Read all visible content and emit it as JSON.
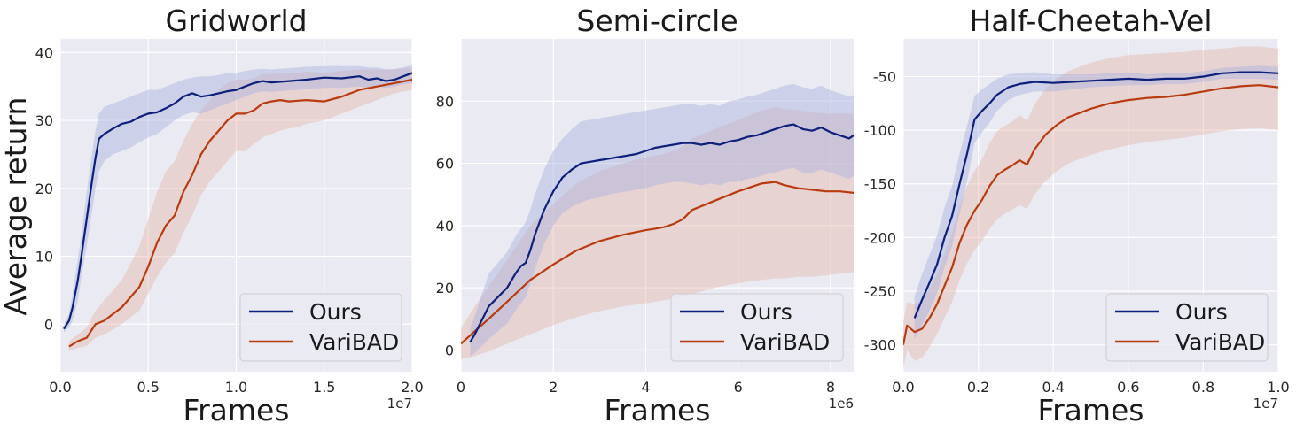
{
  "figure": {
    "ylabel": "Average return"
  },
  "chart_data": [
    {
      "type": "line",
      "title": "Gridworld",
      "xlabel": "Frames",
      "x_offset_label": "1e7",
      "xlim": [
        0.0,
        2.0
      ],
      "ylim": [
        -7,
        42
      ],
      "xticks": [
        0.0,
        0.5,
        1.0,
        1.5,
        2.0
      ],
      "xtick_labels": [
        "0.0",
        "0.5",
        "1.0",
        "1.5",
        "2.0"
      ],
      "yticks": [
        0,
        10,
        20,
        30,
        40
      ],
      "ytick_labels": [
        "0",
        "10",
        "20",
        "30",
        "40"
      ],
      "grid": true,
      "legend_position": "lower-right",
      "series": [
        {
          "name": "Ours",
          "color": "#0c1f7a",
          "band_color": "#a8b2de",
          "x": [
            0.02,
            0.05,
            0.07,
            0.1,
            0.12,
            0.15,
            0.18,
            0.2,
            0.22,
            0.25,
            0.3,
            0.35,
            0.4,
            0.45,
            0.5,
            0.55,
            0.6,
            0.65,
            0.7,
            0.75,
            0.8,
            0.85,
            0.9,
            0.95,
            1.0,
            1.05,
            1.1,
            1.15,
            1.2,
            1.3,
            1.4,
            1.5,
            1.6,
            1.7,
            1.75,
            1.8,
            1.85,
            1.9,
            1.95,
            2.0
          ],
          "y": [
            -0.7,
            0.5,
            2.5,
            6.5,
            10.0,
            15.5,
            21.0,
            24.5,
            27.3,
            28.0,
            28.8,
            29.5,
            29.8,
            30.5,
            31.0,
            31.2,
            31.8,
            32.5,
            33.5,
            34.0,
            33.5,
            33.7,
            34.0,
            34.3,
            34.5,
            35.0,
            35.5,
            35.8,
            35.6,
            35.8,
            36.0,
            36.3,
            36.2,
            36.5,
            36.0,
            36.2,
            35.8,
            36.0,
            36.5,
            37.0
          ],
          "lower": [
            -1.2,
            -0.5,
            0.5,
            3.5,
            7.0,
            11.5,
            16.5,
            20.0,
            22.5,
            24.0,
            25.0,
            25.5,
            26.0,
            26.8,
            27.5,
            28.0,
            29.0,
            30.0,
            30.8,
            31.2,
            31.0,
            31.5,
            32.0,
            32.5,
            33.0,
            33.5,
            34.0,
            34.3,
            34.2,
            34.4,
            34.6,
            34.8,
            34.8,
            35.0,
            34.8,
            35.0,
            34.8,
            35.0,
            35.3,
            35.5
          ],
          "upper": [
            -0.2,
            1.5,
            4.5,
            9.5,
            13.0,
            19.5,
            25.0,
            28.5,
            31.0,
            32.0,
            32.5,
            33.0,
            33.5,
            34.0,
            34.5,
            34.5,
            35.0,
            35.5,
            36.0,
            36.3,
            36.5,
            36.5,
            36.7,
            37.0,
            37.0,
            37.3,
            37.5,
            37.6,
            37.5,
            37.7,
            37.9,
            38.0,
            38.0,
            38.0,
            37.8,
            37.8,
            37.5,
            37.6,
            37.8,
            38.2
          ]
        },
        {
          "name": "VariBAD",
          "color": "#b83b0f",
          "band_color": "#e6b8ae",
          "x": [
            0.05,
            0.1,
            0.15,
            0.2,
            0.25,
            0.3,
            0.35,
            0.4,
            0.45,
            0.5,
            0.55,
            0.6,
            0.65,
            0.7,
            0.75,
            0.8,
            0.85,
            0.9,
            0.95,
            1.0,
            1.05,
            1.1,
            1.15,
            1.2,
            1.25,
            1.3,
            1.35,
            1.4,
            1.5,
            1.6,
            1.7,
            1.8,
            1.9,
            2.0
          ],
          "y": [
            -3.3,
            -2.5,
            -2.0,
            0.0,
            0.5,
            1.5,
            2.5,
            4.0,
            5.5,
            8.5,
            12.0,
            14.5,
            16.0,
            19.5,
            22.0,
            25.0,
            27.0,
            28.5,
            30.0,
            31.0,
            31.0,
            31.5,
            32.5,
            32.8,
            33.0,
            32.8,
            32.9,
            33.0,
            32.8,
            33.5,
            34.5,
            35.0,
            35.5,
            36.0
          ],
          "lower": [
            -4.0,
            -3.5,
            -3.2,
            -2.0,
            -1.5,
            -0.8,
            0.0,
            1.0,
            2.0,
            4.5,
            7.0,
            9.0,
            10.5,
            13.5,
            16.0,
            19.0,
            21.0,
            22.5,
            24.0,
            25.5,
            25.5,
            26.5,
            27.5,
            28.0,
            28.5,
            28.8,
            29.0,
            29.5,
            30.0,
            31.0,
            32.0,
            33.0,
            34.0,
            34.5
          ],
          "upper": [
            -2.5,
            -1.5,
            -0.5,
            2.0,
            3.5,
            5.0,
            6.5,
            9.0,
            11.5,
            15.5,
            19.5,
            22.5,
            24.0,
            27.0,
            29.5,
            31.5,
            33.0,
            34.5,
            35.5,
            36.0,
            36.0,
            36.2,
            36.8,
            36.8,
            37.0,
            37.0,
            37.0,
            37.2,
            37.0,
            37.3,
            37.5,
            37.5,
            37.5,
            37.8
          ]
        }
      ]
    },
    {
      "type": "line",
      "title": "Semi-circle",
      "xlabel": "Frames",
      "x_offset_label": "1e6",
      "xlim": [
        0,
        8.5
      ],
      "ylim": [
        -7,
        100
      ],
      "xticks": [
        0,
        2,
        4,
        6,
        8
      ],
      "xtick_labels": [
        "0",
        "2",
        "4",
        "6",
        "8"
      ],
      "yticks": [
        0,
        20,
        40,
        60,
        80
      ],
      "ytick_labels": [
        "0",
        "20",
        "40",
        "60",
        "80"
      ],
      "grid": true,
      "legend_position": "lower-right",
      "series": [
        {
          "name": "Ours",
          "color": "#0c1f7a",
          "band_color": "#a8b2de",
          "x": [
            0.2,
            0.3,
            0.4,
            0.5,
            0.6,
            0.8,
            1.0,
            1.2,
            1.3,
            1.4,
            1.5,
            1.6,
            1.7,
            1.8,
            1.9,
            2.0,
            2.2,
            2.4,
            2.6,
            2.8,
            3.0,
            3.2,
            3.4,
            3.6,
            3.8,
            4.0,
            4.2,
            4.4,
            4.6,
            4.8,
            5.0,
            5.2,
            5.4,
            5.6,
            5.8,
            6.0,
            6.2,
            6.4,
            6.6,
            6.8,
            7.0,
            7.2,
            7.4,
            7.6,
            7.8,
            8.0,
            8.2,
            8.4,
            8.5
          ],
          "y": [
            2.5,
            5.0,
            8.0,
            11.0,
            14.0,
            17.0,
            20.0,
            25.0,
            27.0,
            28.0,
            32.0,
            37.0,
            41.0,
            45.0,
            48.0,
            51.0,
            55.5,
            58.0,
            60.0,
            60.5,
            61.0,
            61.5,
            62.0,
            62.5,
            63.0,
            64.0,
            65.0,
            65.5,
            66.0,
            66.5,
            66.5,
            66.0,
            66.5,
            66.0,
            67.0,
            67.5,
            68.5,
            69.0,
            70.0,
            71.0,
            72.0,
            72.5,
            71.0,
            70.5,
            71.5,
            70.0,
            69.0,
            68.0,
            69.0
          ],
          "lower": [
            -2.0,
            -1.0,
            0.5,
            2.0,
            3.5,
            6.0,
            8.5,
            13.0,
            15.0,
            17.0,
            21.0,
            26.0,
            30.0,
            34.0,
            37.0,
            40.0,
            44.0,
            46.0,
            47.5,
            48.5,
            49.0,
            50.0,
            50.5,
            51.0,
            51.5,
            52.0,
            53.0,
            53.5,
            54.0,
            54.0,
            53.5,
            53.0,
            53.5,
            53.0,
            54.0,
            54.0,
            55.0,
            55.5,
            56.5,
            57.0,
            58.0,
            58.5,
            57.0,
            57.0,
            58.0,
            57.0,
            56.0,
            55.0,
            56.0
          ],
          "upper": [
            7.0,
            11.0,
            15.5,
            20.0,
            24.5,
            28.0,
            31.5,
            37.0,
            39.0,
            41.0,
            45.0,
            50.0,
            54.0,
            58.0,
            61.0,
            64.0,
            68.0,
            71.0,
            73.5,
            74.0,
            74.5,
            75.0,
            75.5,
            76.0,
            76.5,
            77.0,
            77.5,
            78.0,
            78.5,
            79.0,
            79.0,
            78.5,
            79.0,
            78.5,
            80.0,
            80.5,
            81.5,
            82.0,
            83.0,
            84.0,
            85.0,
            85.5,
            84.5,
            84.0,
            85.0,
            83.5,
            82.5,
            81.5,
            82.0
          ]
        },
        {
          "name": "VariBAD",
          "color": "#b83b0f",
          "band_color": "#e6b8ae",
          "x": [
            0.0,
            0.3,
            0.6,
            1.0,
            1.5,
            2.0,
            2.5,
            3.0,
            3.5,
            4.0,
            4.2,
            4.4,
            4.6,
            4.8,
            5.0,
            5.5,
            6.0,
            6.5,
            6.8,
            7.0,
            7.3,
            7.6,
            7.9,
            8.2,
            8.5
          ],
          "y": [
            2.0,
            6.0,
            10.0,
            15.5,
            22.5,
            27.5,
            32.0,
            35.0,
            37.0,
            38.5,
            39.0,
            39.5,
            40.5,
            42.0,
            45.0,
            48.0,
            51.0,
            53.5,
            54.0,
            53.0,
            52.0,
            51.5,
            51.0,
            51.0,
            50.5
          ],
          "lower": [
            -3.0,
            -2.0,
            -0.5,
            2.0,
            5.0,
            8.0,
            10.5,
            12.5,
            14.0,
            15.0,
            15.5,
            16.0,
            16.5,
            17.0,
            18.0,
            20.0,
            21.5,
            22.5,
            23.0,
            23.0,
            23.5,
            23.5,
            24.0,
            24.5,
            25.0
          ],
          "upper": [
            7.0,
            14.0,
            20.5,
            29.0,
            40.0,
            47.0,
            53.5,
            57.5,
            60.0,
            62.0,
            62.5,
            63.0,
            64.0,
            65.5,
            68.0,
            71.0,
            74.0,
            77.0,
            78.0,
            77.5,
            77.0,
            76.5,
            76.0,
            76.0,
            76.0
          ]
        }
      ]
    },
    {
      "type": "line",
      "title": "Half-Cheetah-Vel",
      "xlabel": "Frames",
      "x_offset_label": "1e7",
      "xlim": [
        0.0,
        1.0
      ],
      "ylim": [
        -325,
        -15
      ],
      "xticks": [
        0.0,
        0.2,
        0.4,
        0.6,
        0.8,
        1.0
      ],
      "xtick_labels": [
        "0.0",
        "0.2",
        "0.4",
        "0.6",
        "0.8",
        "1.0"
      ],
      "yticks": [
        -300,
        -250,
        -200,
        -150,
        -100,
        -50
      ],
      "ytick_labels": [
        "-300",
        "-250",
        "-200",
        "-150",
        "-100",
        "-50"
      ],
      "grid": true,
      "legend_position": "lower-right",
      "series": [
        {
          "name": "Ours",
          "color": "#0c1f7a",
          "band_color": "#a8b2de",
          "x": [
            0.03,
            0.05,
            0.07,
            0.09,
            0.11,
            0.13,
            0.15,
            0.17,
            0.19,
            0.21,
            0.23,
            0.25,
            0.28,
            0.31,
            0.35,
            0.4,
            0.45,
            0.5,
            0.55,
            0.6,
            0.65,
            0.7,
            0.75,
            0.8,
            0.85,
            0.9,
            0.95,
            1.0
          ],
          "y": [
            -275,
            -258,
            -242,
            -225,
            -200,
            -180,
            -150,
            -122,
            -90,
            -82,
            -75,
            -67,
            -60,
            -57,
            -55,
            -56,
            -55,
            -54,
            -53,
            -52,
            -53,
            -52,
            -52,
            -50,
            -47,
            -46,
            -46,
            -47
          ],
          "lower": [
            -295,
            -282,
            -268,
            -252,
            -228,
            -208,
            -178,
            -148,
            -112,
            -102,
            -93,
            -82,
            -72,
            -67,
            -64,
            -64,
            -62,
            -60,
            -59,
            -58,
            -58,
            -57,
            -57,
            -55,
            -52,
            -52,
            -52,
            -53
          ],
          "upper": [
            -255,
            -234,
            -216,
            -198,
            -172,
            -152,
            -122,
            -96,
            -68,
            -62,
            -57,
            -52,
            -48,
            -47,
            -46,
            -48,
            -48,
            -48,
            -47,
            -46,
            -48,
            -47,
            -47,
            -45,
            -42,
            -41,
            -40,
            -41
          ]
        },
        {
          "name": "VariBAD",
          "color": "#b83b0f",
          "band_color": "#e6b8ae",
          "x": [
            0.0,
            0.01,
            0.03,
            0.05,
            0.07,
            0.09,
            0.11,
            0.13,
            0.15,
            0.17,
            0.19,
            0.21,
            0.23,
            0.25,
            0.27,
            0.29,
            0.31,
            0.33,
            0.35,
            0.38,
            0.41,
            0.44,
            0.47,
            0.5,
            0.55,
            0.6,
            0.65,
            0.7,
            0.75,
            0.8,
            0.85,
            0.9,
            0.95,
            1.0
          ],
          "y": [
            -300,
            -282,
            -288,
            -285,
            -275,
            -262,
            -245,
            -228,
            -205,
            -188,
            -175,
            -165,
            -152,
            -142,
            -137,
            -133,
            -128,
            -132,
            -118,
            -104,
            -95,
            -88,
            -84,
            -80,
            -75,
            -72,
            -70,
            -69,
            -67,
            -64,
            -61,
            -59,
            -58,
            -60
          ],
          "lower": [
            -322,
            -305,
            -315,
            -312,
            -302,
            -290,
            -275,
            -260,
            -240,
            -224,
            -212,
            -203,
            -192,
            -183,
            -178,
            -174,
            -170,
            -173,
            -160,
            -147,
            -138,
            -131,
            -127,
            -123,
            -118,
            -114,
            -111,
            -109,
            -107,
            -104,
            -101,
            -99,
            -98,
            -100
          ],
          "upper": [
            -278,
            -260,
            -262,
            -258,
            -248,
            -234,
            -215,
            -196,
            -170,
            -152,
            -138,
            -127,
            -112,
            -101,
            -96,
            -92,
            -86,
            -91,
            -76,
            -61,
            -52,
            -45,
            -41,
            -37,
            -33,
            -30,
            -29,
            -28,
            -27,
            -25,
            -24,
            -22,
            -22,
            -24
          ]
        }
      ]
    }
  ]
}
